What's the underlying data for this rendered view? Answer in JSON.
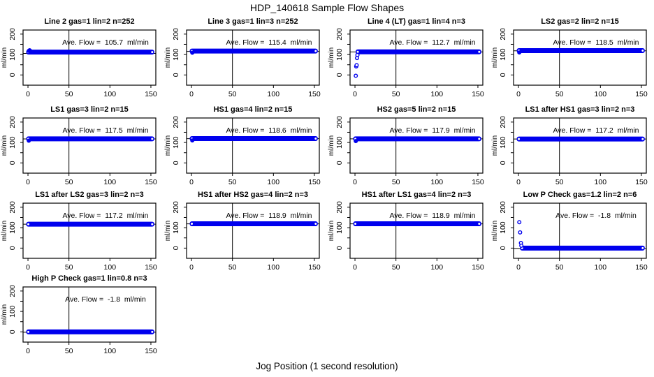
{
  "page": {
    "title": "HDP_140618  Sample Flow Shapes",
    "xlabel": "Jog Position (1 second resolution)"
  },
  "colors": {
    "point_blue": "#0000EE",
    "axis_black": "#000000",
    "background": "#FFFFFF"
  },
  "chart_data": {
    "type": "scatter",
    "title": "HDP_140618  Sample Flow Shapes",
    "xlabel": "Jog Position (1 second resolution)",
    "ylabel": "ml/min",
    "grid": false,
    "marker": "open-circle",
    "point_color": "#0000EE",
    "xlim": [
      -6,
      156
    ],
    "ylim": [
      -50,
      220
    ],
    "x_ticks": [
      0,
      50,
      100,
      150
    ],
    "y_ticks": [
      0,
      50,
      100,
      150,
      200
    ],
    "y_tick_labels": [
      "0",
      "",
      "100",
      "",
      "200"
    ],
    "vline_x": 50,
    "plots": [
      {
        "title": "Line 2 gas=1 lin=2 n=252",
        "avg_flow": 105.7,
        "label": "Ave. Flow =  105.7  ml/min",
        "hline_y": 105.7,
        "band_y": 112,
        "band_x": [
          0,
          152
        ],
        "points_style": "solid",
        "points": [
          [
            1,
            118
          ],
          [
            2,
            121
          ],
          [
            3,
            117
          ]
        ]
      },
      {
        "title": "Line 3 gas=1 lin=3 n=252",
        "avg_flow": 115.4,
        "label": "Ave. Flow =  115.4  ml/min",
        "hline_y": 115.4,
        "band_y": 117,
        "band_x": [
          0,
          152
        ],
        "points_style": "solid",
        "points": [
          [
            1,
            109
          ]
        ]
      },
      {
        "title": "Line 4 (LT) gas=1 lin=4 n=3",
        "avg_flow": 112.7,
        "label": "Ave. Flow =  112.7  ml/min",
        "hline_y": 112.7,
        "band_y": 113,
        "band_x": [
          3,
          152
        ],
        "points_style": "open",
        "points": [
          [
            1,
            -4
          ],
          [
            1.5,
            42
          ],
          [
            2,
            48
          ],
          [
            2.5,
            83
          ],
          [
            3,
            98
          ]
        ]
      },
      {
        "title": "LS2 gas=2 lin=2 n=15",
        "avg_flow": 118.5,
        "label": "Ave. Flow =  118.5  ml/min",
        "hline_y": 118.5,
        "band_y": 119,
        "band_x": [
          0,
          152
        ],
        "points_style": "solid",
        "points": [
          [
            1,
            110
          ]
        ]
      },
      {
        "title": "LS1 gas=3 lin=2 n=15",
        "avg_flow": 117.5,
        "label": "Ave. Flow =  117.5  ml/min",
        "hline_y": 117.5,
        "band_y": 118,
        "band_x": [
          0,
          152
        ],
        "points_style": "solid",
        "points": [
          [
            1,
            109
          ]
        ]
      },
      {
        "title": "HS1 gas=4 lin=2 n=15",
        "avg_flow": 118.6,
        "label": "Ave. Flow =  118.6  ml/min",
        "hline_y": 118.6,
        "band_y": 119,
        "band_x": [
          0,
          152
        ],
        "points_style": "solid",
        "points": [
          [
            1,
            110
          ]
        ]
      },
      {
        "title": "HS2 gas=5 lin=2 n=15",
        "avg_flow": 117.9,
        "label": "Ave. Flow =  117.9  ml/min",
        "hline_y": 117.9,
        "band_y": 118,
        "band_x": [
          0,
          152
        ],
        "points_style": "solid",
        "points": [
          [
            1,
            107
          ]
        ]
      },
      {
        "title": "LS1 after HS1 gas=3 lin=2 n=3",
        "avg_flow": 117.2,
        "label": "Ave. Flow =  117.2  ml/min",
        "hline_y": 117.2,
        "band_y": 117,
        "band_x": [
          0,
          152
        ],
        "points_style": "open",
        "points": []
      },
      {
        "title": "LS1 after LS2 gas=3 lin=2 n=3",
        "avg_flow": 117.2,
        "label": "Ave. Flow =  117.2  ml/min",
        "hline_y": 117.2,
        "band_y": 117,
        "band_x": [
          0,
          152
        ],
        "points_style": "open",
        "points": []
      },
      {
        "title": "HS1 after HS2 gas=4 lin=2 n=3",
        "avg_flow": 118.9,
        "label": "Ave. Flow =  118.9  ml/min",
        "hline_y": 118.9,
        "band_y": 119,
        "band_x": [
          0,
          152
        ],
        "points_style": "open",
        "points": []
      },
      {
        "title": "HS1 after LS1 gas=4 lin=2 n=3",
        "avg_flow": 118.9,
        "label": "Ave. Flow =  118.9  ml/min",
        "hline_y": 118.9,
        "band_y": 119,
        "band_x": [
          0,
          152
        ],
        "points_style": "open",
        "points": []
      },
      {
        "title": "Low P Check gas=1.2 lin=2 n=6",
        "avg_flow": -1.8,
        "label": "Ave. Flow =  -1.8  ml/min",
        "hline_y": -1.8,
        "band_y": 0,
        "band_x": [
          4,
          152
        ],
        "points_style": "open",
        "points": [
          [
            1,
            127
          ],
          [
            2,
            77
          ],
          [
            3,
            25
          ],
          [
            3.5,
            12
          ]
        ]
      },
      {
        "title": "High P Check gas=1 lin=0.8 n=3",
        "avg_flow": -1.8,
        "label": "Ave. Flow =  -1.8  ml/min",
        "hline_y": -1.8,
        "band_y": 0,
        "band_x": [
          0,
          152
        ],
        "points_style": "open",
        "points": []
      }
    ]
  }
}
